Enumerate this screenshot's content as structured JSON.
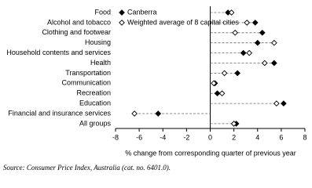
{
  "chart_data": {
    "type": "dot",
    "categories": [
      "Food",
      "Alcohol and tobacco",
      "Clothing and footwear",
      "Housing",
      "Household contents and services",
      "Health",
      "Transportation",
      "Communication",
      "Recreation",
      "Education",
      "Financial and insurance services",
      "All groups"
    ],
    "series": [
      {
        "name": "Canberra",
        "color": "#000000",
        "marker": "filled-diamond",
        "values": [
          1.5,
          3.8,
          4.4,
          4.0,
          2.8,
          5.4,
          2.3,
          0.4,
          0.6,
          6.2,
          -4.4,
          2.2
        ]
      },
      {
        "name": "Weighted average of 8 capital cities",
        "color": "#000000",
        "marker": "open-diamond",
        "values": [
          1.8,
          3.1,
          2.1,
          5.4,
          3.3,
          4.6,
          1.2,
          0.3,
          1.0,
          5.6,
          -6.4,
          2.0
        ]
      }
    ],
    "xlabel": "% change from corresponding quarter of previous year",
    "xlim": [
      -8,
      8
    ],
    "xticks": [
      -8,
      -6,
      -4,
      -2,
      0,
      2,
      4,
      6,
      8
    ],
    "source": "Source: Consumer Price Index, Australia (cat. no. 6401.0)."
  }
}
